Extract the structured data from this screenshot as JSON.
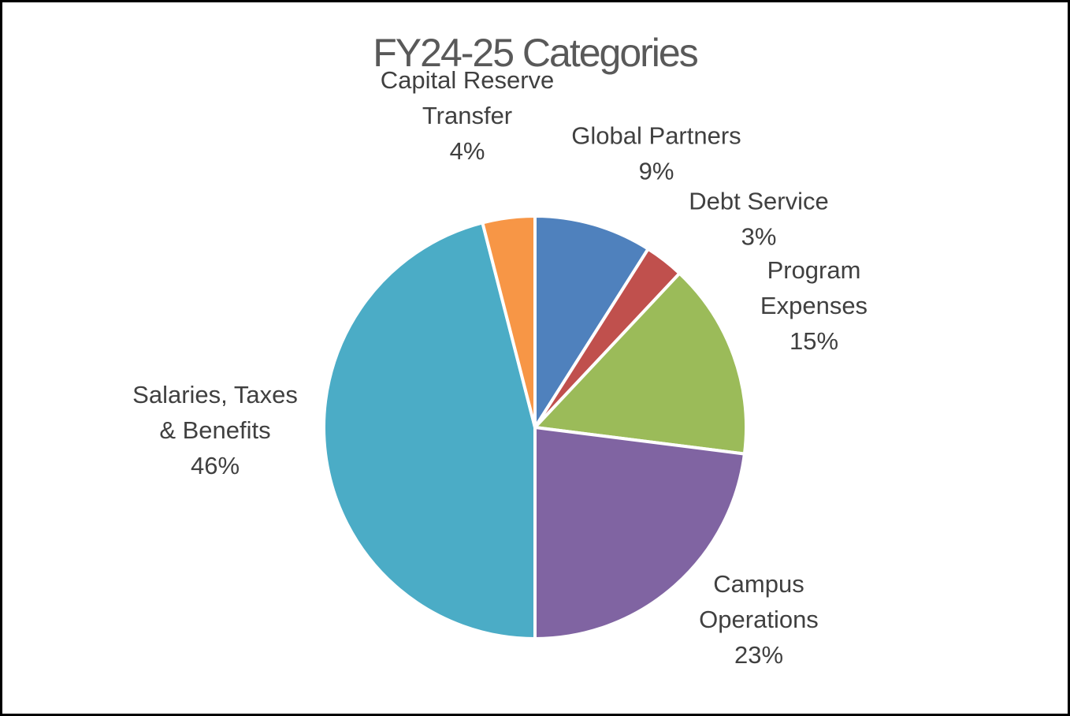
{
  "chart_data": {
    "type": "pie",
    "title": "FY24-25 Categories",
    "slices": [
      {
        "label_lines": [
          "Global Partners"
        ],
        "percent_label": "9%",
        "value": 9,
        "color": "#4f81bd"
      },
      {
        "label_lines": [
          "Debt Service"
        ],
        "percent_label": "3%",
        "value": 3,
        "color": "#c0504d"
      },
      {
        "label_lines": [
          "Program",
          "Expenses"
        ],
        "percent_label": "15%",
        "value": 15,
        "color": "#9bbb59"
      },
      {
        "label_lines": [
          "Campus",
          "Operations"
        ],
        "percent_label": "23%",
        "value": 23,
        "color": "#8064a2"
      },
      {
        "label_lines": [
          "Salaries, Taxes",
          "& Benefits"
        ],
        "percent_label": "46%",
        "value": 46,
        "color": "#4bacc6"
      },
      {
        "label_lines": [
          "Capital Reserve",
          "Transfer"
        ],
        "percent_label": "4%",
        "value": 4,
        "color": "#f79646"
      }
    ]
  }
}
